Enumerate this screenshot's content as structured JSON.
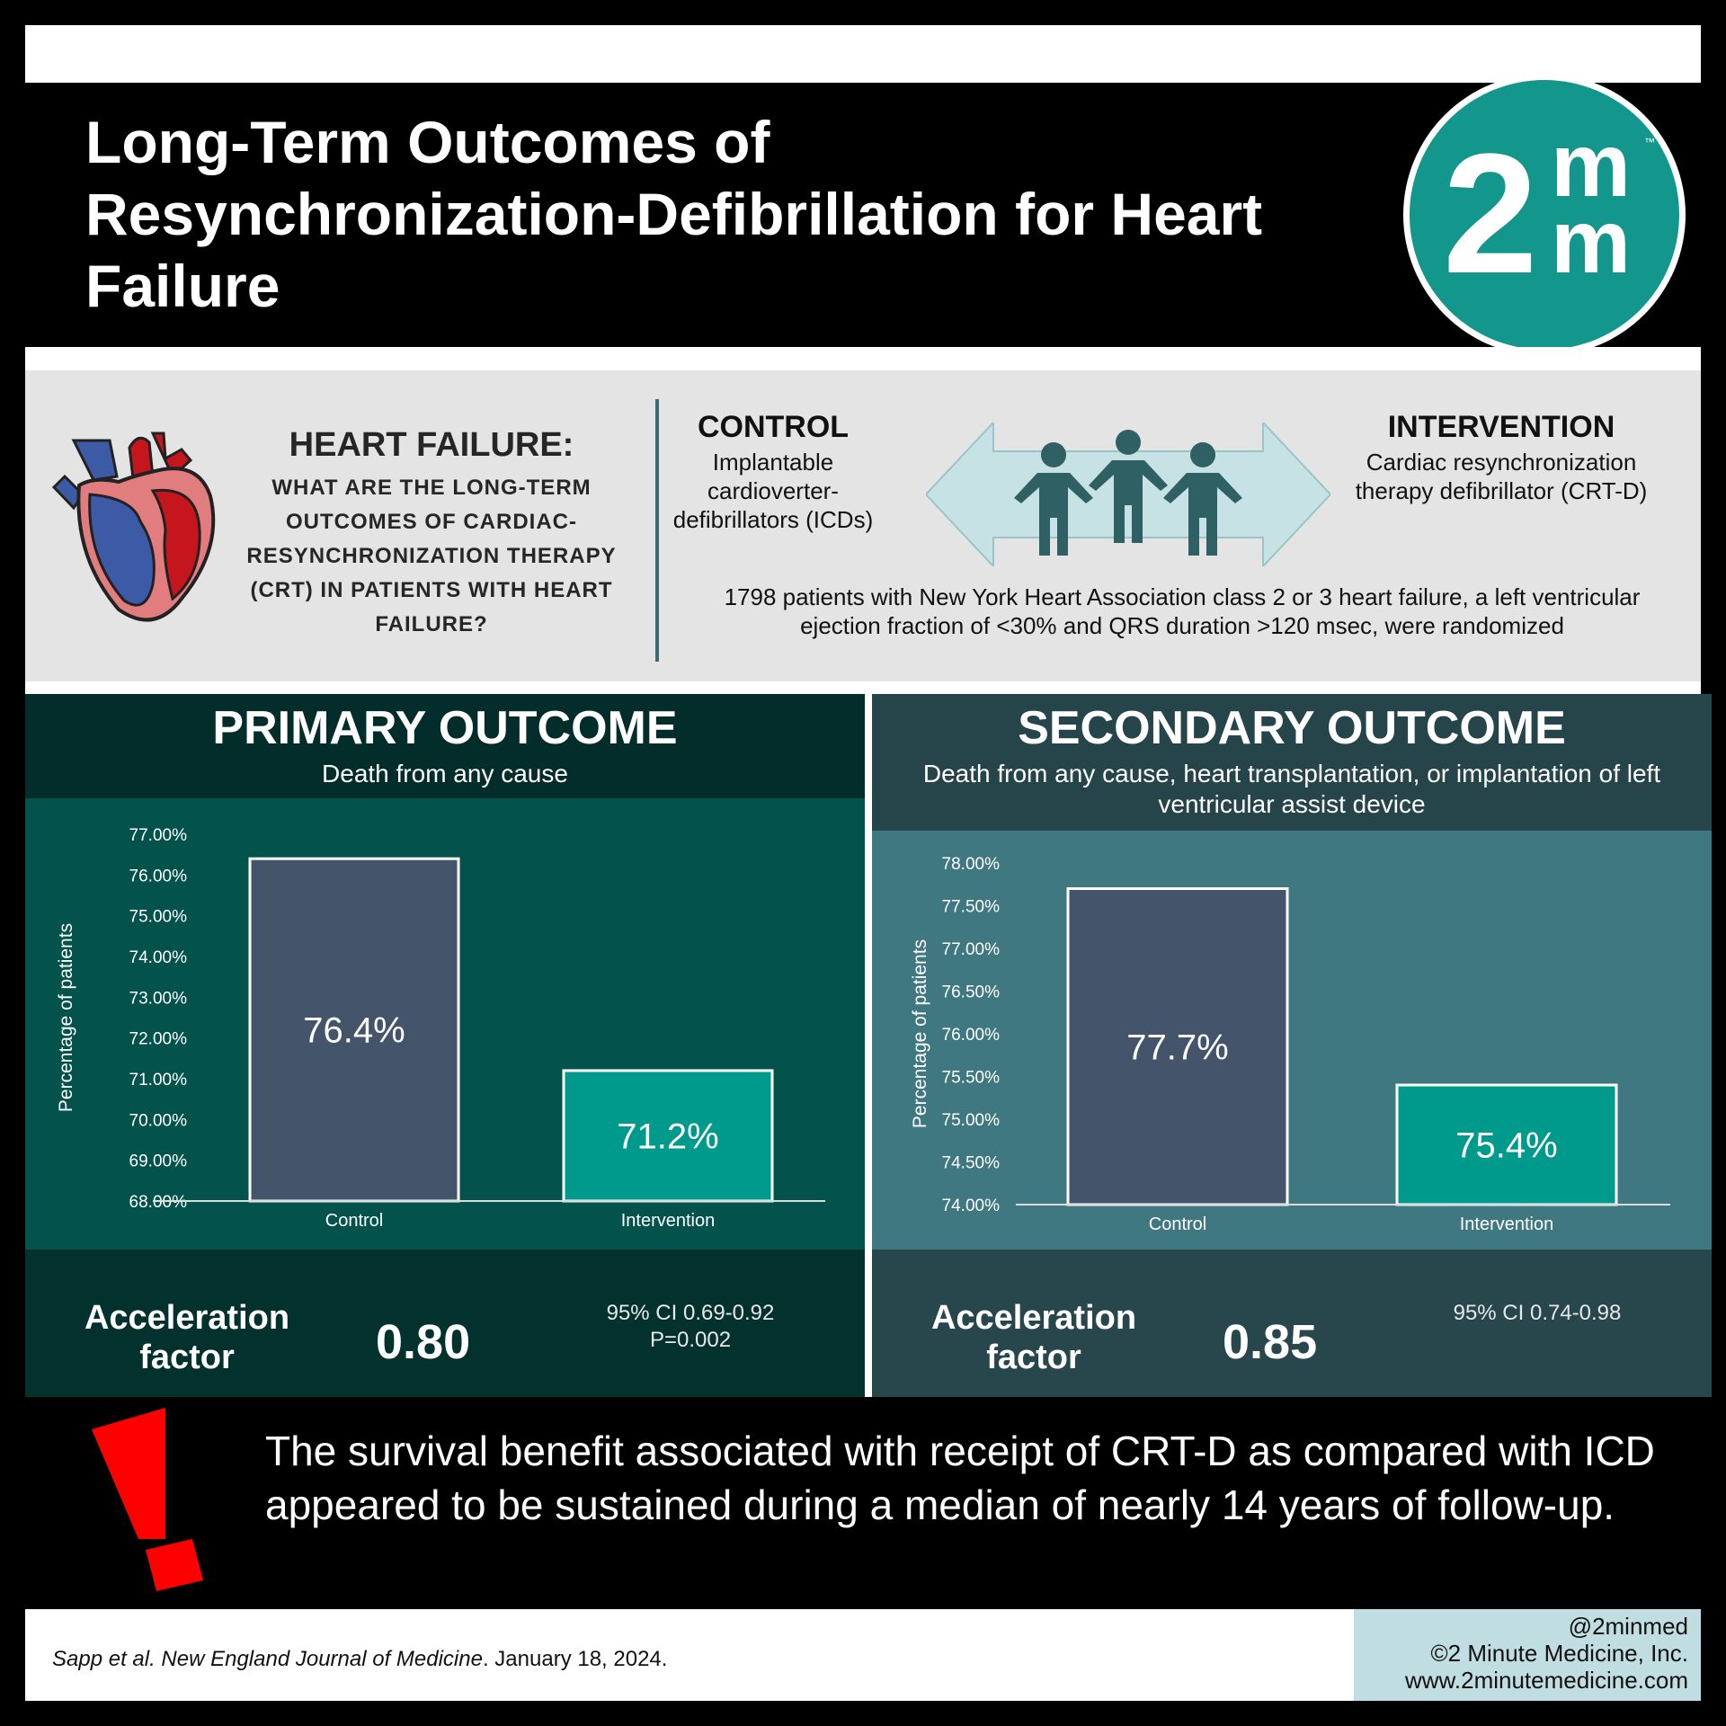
{
  "header": {
    "title": "Long-Term Outcomes of Resynchronization-Defibrillation for Heart Failure",
    "logo_text": "2mm"
  },
  "question": {
    "title": "HEART FAILURE:",
    "text": "WHAT ARE THE LONG-TERM OUTCOMES OF CARDIAC-RESYNCHRONIZATION THERAPY (CRT) IN PATIENTS WITH HEART FAILURE?"
  },
  "control": {
    "title": "CONTROL",
    "text": "Implantable cardioverter-defibrillators (ICDs)"
  },
  "intervention": {
    "title": "INTERVENTION",
    "text": "Cardiac resynchronization therapy defibrillator (CRT-D)"
  },
  "population": "1798 patients with New York Heart Association class 2 or 3 heart failure, a left ventricular ejection fraction of <30% and QRS duration >120 msec, were randomized",
  "primary": {
    "title": "PRIMARY OUTCOME",
    "subtitle": "Death from any cause",
    "af_label": "Acceleration factor",
    "af_value": "0.80",
    "ci": "95% CI 0.69-0.92",
    "p": "P=0.002"
  },
  "secondary": {
    "title": "SECONDARY OUTCOME",
    "subtitle": "Death from any cause, heart transplantation, or implantation of left ventricular assist device",
    "af_label": "Acceleration factor",
    "af_value": "0.85",
    "ci": "95% CI 0.74-0.98"
  },
  "chart_data": [
    {
      "type": "bar",
      "categories": [
        "Control",
        "Intervention"
      ],
      "values": [
        76.4,
        71.2
      ],
      "data_labels": [
        "76.4%",
        "71.2%"
      ],
      "ylabel": "Percentage of patients",
      "ylim": [
        68,
        77
      ],
      "yticks": [
        "77.00%",
        "76.00%",
        "75.00%",
        "74.00%",
        "73.00%",
        "72.00%",
        "71.00%",
        "70.00%",
        "69.00%",
        "68.00%"
      ],
      "colors": [
        "#44546b",
        "#009a8c"
      ],
      "grid": false
    },
    {
      "type": "bar",
      "categories": [
        "Control",
        "Intervention"
      ],
      "values": [
        77.7,
        75.4
      ],
      "data_labels": [
        "77.7%",
        "75.4%"
      ],
      "ylabel": "Percentage of patients",
      "ylim": [
        74,
        78
      ],
      "yticks": [
        "78.00%",
        "77.50%",
        "77.00%",
        "76.50%",
        "76.00%",
        "75.50%",
        "75.00%",
        "74.50%",
        "74.00%"
      ],
      "colors": [
        "#44546b",
        "#009a8c"
      ],
      "grid": false
    }
  ],
  "takeaway": "The survival benefit associated with receipt of CRT-D as compared with ICD appeared to be sustained during a median of nearly 14 years of follow-up.",
  "citation": {
    "authors": "Sapp et al. New England Journal of Medicine",
    "date": ". January 18, 2024."
  },
  "credits": {
    "handle": "@2minmed",
    "copyright": "©2 Minute Medicine, Inc.",
    "site": "www.2minutemedicine.com"
  },
  "colors": {
    "brand_teal": "#13968c",
    "control_bar": "#44546b",
    "intervention_bar": "#009a8c",
    "alert_red": "#ff0000"
  }
}
